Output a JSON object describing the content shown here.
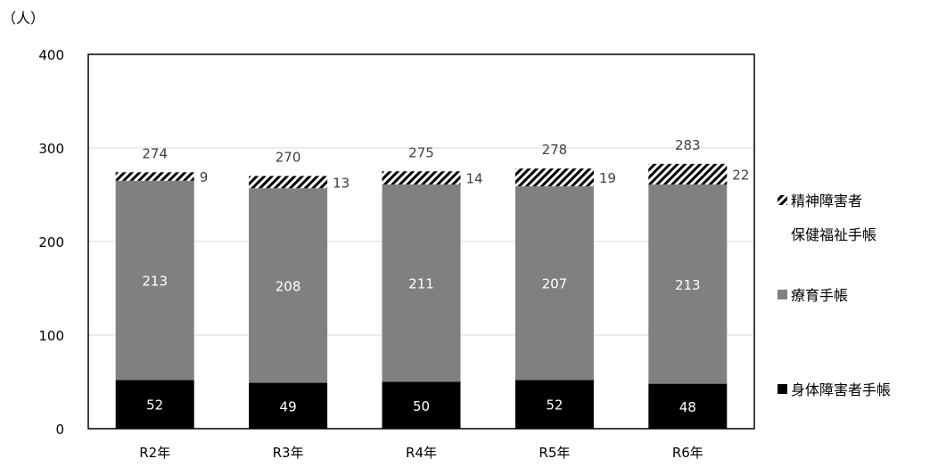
{
  "chart_data": {
    "type": "bar",
    "stacked": true,
    "unit_label": "（人）",
    "categories": [
      "R2年",
      "R3年",
      "R4年",
      "R5年",
      "R6年"
    ],
    "series": [
      {
        "name": "身体障害者手帳",
        "values": [
          52,
          49,
          50,
          52,
          48
        ],
        "color": "#000000",
        "pattern": "solid"
      },
      {
        "name": "療育手帳",
        "values": [
          213,
          208,
          211,
          207,
          213
        ],
        "color": "#808080",
        "pattern": "solid"
      },
      {
        "name": "精神障害者\n保健福祉手帳",
        "legend_lines": [
          "精神障害者",
          "保健福祉手帳"
        ],
        "values": [
          9,
          13,
          14,
          19,
          22
        ],
        "color": "#000000",
        "pattern": "diagonal-hatch"
      }
    ],
    "totals": [
      274,
      270,
      275,
      278,
      283
    ],
    "ylim": [
      0,
      400
    ],
    "yticks": [
      0,
      100,
      200,
      300,
      400
    ],
    "grid": true,
    "legend_position": "right"
  }
}
